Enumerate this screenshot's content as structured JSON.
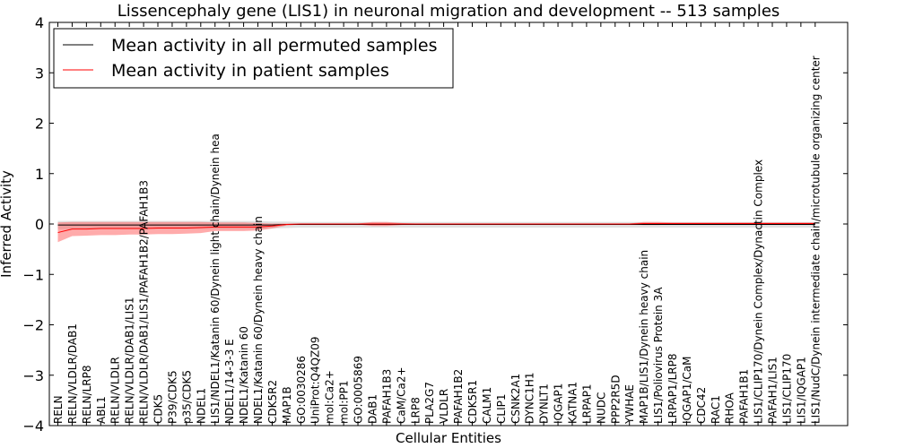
{
  "chart_data": {
    "type": "line",
    "title": "Lissencephaly gene (LIS1) in neuronal migration and development -- 513 samples",
    "xlabel": "Cellular Entities",
    "ylabel": "Inferred Activity",
    "ylim": [
      -4,
      4
    ],
    "yticks": [
      "−4",
      "−3",
      "−2",
      "−1",
      "0",
      "1",
      "2",
      "3",
      "4"
    ],
    "legend_position": "top-left",
    "categories": [
      "RELN",
      "RELN/VLDLR/DAB1",
      "RELN/LRP8",
      "ABL1",
      "RELN/VLDLR",
      "RELN/VLDLR/DAB1/LIS1",
      "RELN/VLDLR/DAB1/LIS1/PAFAH1B2/PAFAH1B3",
      "CDK5",
      "P39/CDK5",
      "p35/CDK5",
      "NDEL1",
      "LIS1/NDEL1/Katanin 60/Dynein light chain/Dynein hea",
      "NDEL1/14-3-3 E",
      "NDEL1/Katanin 60",
      "NDEL1/Katanin 60/Dynein heavy chain",
      "CDK5R2",
      "MAP1B",
      "GO:0030286",
      "UniProt:Q4QZ09",
      "mol:Ca2+",
      "mol:PP1",
      "GO:0005869",
      "DAB1",
      "PAFAH1B3",
      "CaM/Ca2+",
      "LRP8",
      "PLA2G7",
      "VLDLR",
      "PAFAH1B2",
      "CDK5R1",
      "CALM1",
      "CLIP1",
      "CSNK2A1",
      "DYNC1H1",
      "DYNLT1",
      "IQGAP1",
      "KATNA1",
      "LRPAP1",
      "NUDC",
      "PPP2R5D",
      "YWHAE",
      "MAP1B/LIS1/Dynein heavy chain",
      "LIS1/Poliovirus Protein 3A",
      "LRPAP1/LRP8",
      "IQGAP1/CaM",
      "CDC42",
      "RAC1",
      "RHOA",
      "PAFAH1B1",
      "LIS1/CLIP170/Dynein Complex/Dynactin Complex",
      "PAFAH1/LIS1",
      "LIS1/CLIP170",
      "LIS1/IQGAP1",
      "LIS1/NudC/Dynein intermediate chain/microtubule organizing center"
    ],
    "series": [
      {
        "name": "Mean activity in all permuted samples",
        "color": "#000000",
        "values": [
          -0.02,
          -0.02,
          -0.02,
          -0.02,
          -0.02,
          -0.02,
          -0.02,
          -0.02,
          -0.02,
          -0.02,
          -0.02,
          -0.02,
          -0.02,
          -0.02,
          -0.02,
          -0.02,
          -0.01,
          -0.01,
          -0.01,
          -0.01,
          -0.01,
          -0.01,
          -0.01,
          -0.01,
          -0.01,
          -0.01,
          -0.01,
          -0.01,
          -0.01,
          -0.01,
          -0.01,
          -0.01,
          -0.01,
          -0.01,
          -0.01,
          -0.01,
          -0.01,
          -0.01,
          -0.01,
          -0.01,
          -0.01,
          -0.01,
          -0.01,
          -0.01,
          -0.01,
          -0.01,
          -0.01,
          -0.01,
          -0.01,
          -0.01,
          -0.01,
          -0.01,
          -0.01,
          -0.01
        ],
        "band_color": "#cccccc",
        "band_lower": [
          -0.1,
          -0.1,
          -0.1,
          -0.1,
          -0.1,
          -0.1,
          -0.1,
          -0.1,
          -0.1,
          -0.1,
          -0.1,
          -0.1,
          -0.1,
          -0.1,
          -0.1,
          -0.09,
          -0.08,
          -0.07,
          -0.07,
          -0.07,
          -0.07,
          -0.07,
          -0.07,
          -0.07,
          -0.07,
          -0.07,
          -0.07,
          -0.07,
          -0.07,
          -0.07,
          -0.07,
          -0.07,
          -0.07,
          -0.07,
          -0.07,
          -0.07,
          -0.07,
          -0.07,
          -0.07,
          -0.07,
          -0.07,
          -0.07,
          -0.07,
          -0.07,
          -0.07,
          -0.07,
          -0.07,
          -0.07,
          -0.07,
          -0.07,
          -0.07,
          -0.07,
          -0.07,
          -0.07
        ],
        "band_upper": [
          0.06,
          0.06,
          0.06,
          0.06,
          0.06,
          0.06,
          0.06,
          0.06,
          0.06,
          0.06,
          0.06,
          0.06,
          0.06,
          0.06,
          0.06,
          0.05,
          0.05,
          0.04,
          0.04,
          0.04,
          0.04,
          0.04,
          0.04,
          0.04,
          0.04,
          0.04,
          0.04,
          0.04,
          0.04,
          0.04,
          0.04,
          0.04,
          0.04,
          0.04,
          0.04,
          0.04,
          0.04,
          0.04,
          0.04,
          0.04,
          0.04,
          0.04,
          0.04,
          0.04,
          0.04,
          0.04,
          0.04,
          0.04,
          0.04,
          0.04,
          0.04,
          0.04,
          0.04,
          0.04
        ]
      },
      {
        "name": "Mean activity in patient samples",
        "color": "#ff0000",
        "values": [
          -0.17,
          -0.1,
          -0.1,
          -0.09,
          -0.09,
          -0.09,
          -0.09,
          -0.08,
          -0.08,
          -0.08,
          -0.07,
          -0.06,
          -0.06,
          -0.06,
          -0.06,
          -0.04,
          -0.01,
          0,
          0,
          0,
          0,
          0,
          0,
          0,
          0,
          0,
          0,
          0,
          0,
          0,
          0,
          0,
          0,
          0,
          0,
          0,
          0,
          0,
          0,
          0,
          0,
          0.01,
          0.01,
          0.01,
          0.01,
          0.01,
          0.01,
          0.01,
          0.01,
          0.01,
          0.01,
          0.01,
          0.01,
          0.01
        ],
        "band_color": "#ff6666",
        "band_lower": [
          -0.36,
          -0.24,
          -0.23,
          -0.22,
          -0.22,
          -0.21,
          -0.21,
          -0.2,
          -0.2,
          -0.19,
          -0.18,
          -0.14,
          -0.14,
          -0.14,
          -0.13,
          -0.09,
          -0.03,
          -0.01,
          -0.01,
          -0.01,
          -0.01,
          -0.01,
          -0.04,
          -0.04,
          -0.02,
          -0.01,
          -0.01,
          -0.01,
          -0.01,
          -0.01,
          -0.01,
          -0.01,
          -0.01,
          -0.01,
          -0.01,
          -0.01,
          -0.01,
          -0.01,
          -0.01,
          -0.01,
          -0.01,
          -0.02,
          -0.02,
          -0.01,
          -0.01,
          -0.01,
          -0.01,
          -0.01,
          -0.01,
          -0.01,
          -0.01,
          -0.01,
          -0.01,
          -0.01
        ],
        "band_upper": [
          0.03,
          0.04,
          0.04,
          0.04,
          0.04,
          0.04,
          0.04,
          0.04,
          0.04,
          0.04,
          0.04,
          0.03,
          0.03,
          0.03,
          0.02,
          0.01,
          0.01,
          0.01,
          0.01,
          0.01,
          0.01,
          0.01,
          0.04,
          0.04,
          0.02,
          0.01,
          0.01,
          0.01,
          0.01,
          0.01,
          0.01,
          0.01,
          0.01,
          0.01,
          0.01,
          0.01,
          0.01,
          0.01,
          0.01,
          0.01,
          0.01,
          0.04,
          0.04,
          0.03,
          0.03,
          0.03,
          0.03,
          0.03,
          0.03,
          0.03,
          0.03,
          0.03,
          0.03,
          0.03
        ]
      }
    ]
  }
}
